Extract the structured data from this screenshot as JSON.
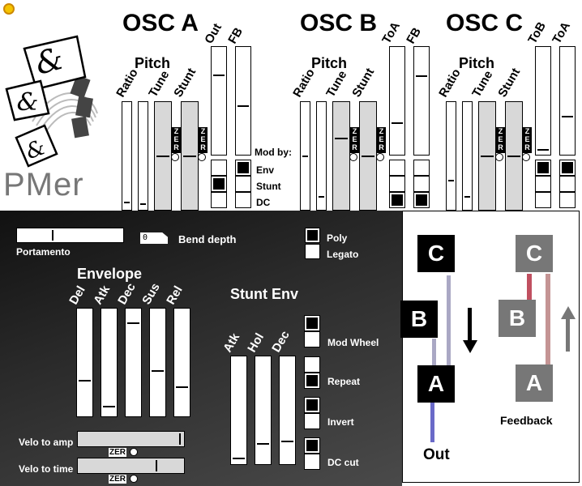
{
  "app": {
    "name": "PMer",
    "logo_glyphs": [
      "&",
      "&",
      "&"
    ]
  },
  "osc_a": {
    "title": "OSC A",
    "pitch": "Pitch",
    "labels": {
      "ratio": "Ratio",
      "tune": "Tune",
      "stunt": "Stunt",
      "out": "Out",
      "fb": "FB"
    },
    "zero": "ZER",
    "mod_by": "Mod by:",
    "mod_labels": [
      "Env",
      "Stunt",
      "DC"
    ],
    "values": {
      "ratio": 0.05,
      "ratio2": 0.03,
      "tune": 0.5,
      "stunt": 0.5,
      "out": 0.75,
      "fb": 0.45
    }
  },
  "osc_b": {
    "title": "OSC B",
    "pitch": "Pitch",
    "labels": {
      "ratio": "Ratio",
      "tune": "Tune",
      "stunt": "Stunt",
      "toa": "ToA",
      "fb": "FB"
    },
    "zero": "ZER",
    "values": {
      "ratio": 0.5,
      "ratio2": 0.1,
      "tune": 0.67,
      "stunt": 0.5,
      "toa": 0.28,
      "fb": 0.74
    }
  },
  "osc_c": {
    "title": "OSC C",
    "pitch": "Pitch",
    "labels": {
      "ratio": "Ratio",
      "tune": "Tune",
      "stunt": "Stunt",
      "tob": "ToB",
      "toa": "ToA"
    },
    "zero": "ZER",
    "values": {
      "ratio": 0.26,
      "ratio2": 0.1,
      "tune": 0.5,
      "stunt": 0.5,
      "tob": 0.02,
      "toa": 0.35
    }
  },
  "controls": {
    "portamento": "Portamento",
    "portamento_value": 0.33,
    "bend_depth_label": "Bend depth",
    "bend_depth_value": "0",
    "poly": "Poly",
    "legato": "Legato"
  },
  "envelope": {
    "title": "Envelope",
    "labels": [
      "Del",
      "Atk",
      "Dec",
      "Sus",
      "Rel"
    ],
    "values": [
      0.32,
      0.07,
      0.88,
      0.42,
      0.26
    ]
  },
  "stunt_env": {
    "title": "Stunt Env",
    "labels": [
      "Atk",
      "Hol",
      "Dec"
    ],
    "values": [
      0.03,
      0.17,
      0.2
    ],
    "options": [
      "Mod Wheel",
      "Repeat",
      "Invert",
      "DC cut"
    ]
  },
  "velocity": {
    "amp_label": "Velo to amp",
    "time_label": "Velo to time",
    "zero": "ZER",
    "amp_value": 0.98,
    "time_value": 0.75
  },
  "routing": {
    "nodes": [
      "C",
      "B",
      "A"
    ],
    "out_label": "Out",
    "feedback_label": "Feedback"
  }
}
